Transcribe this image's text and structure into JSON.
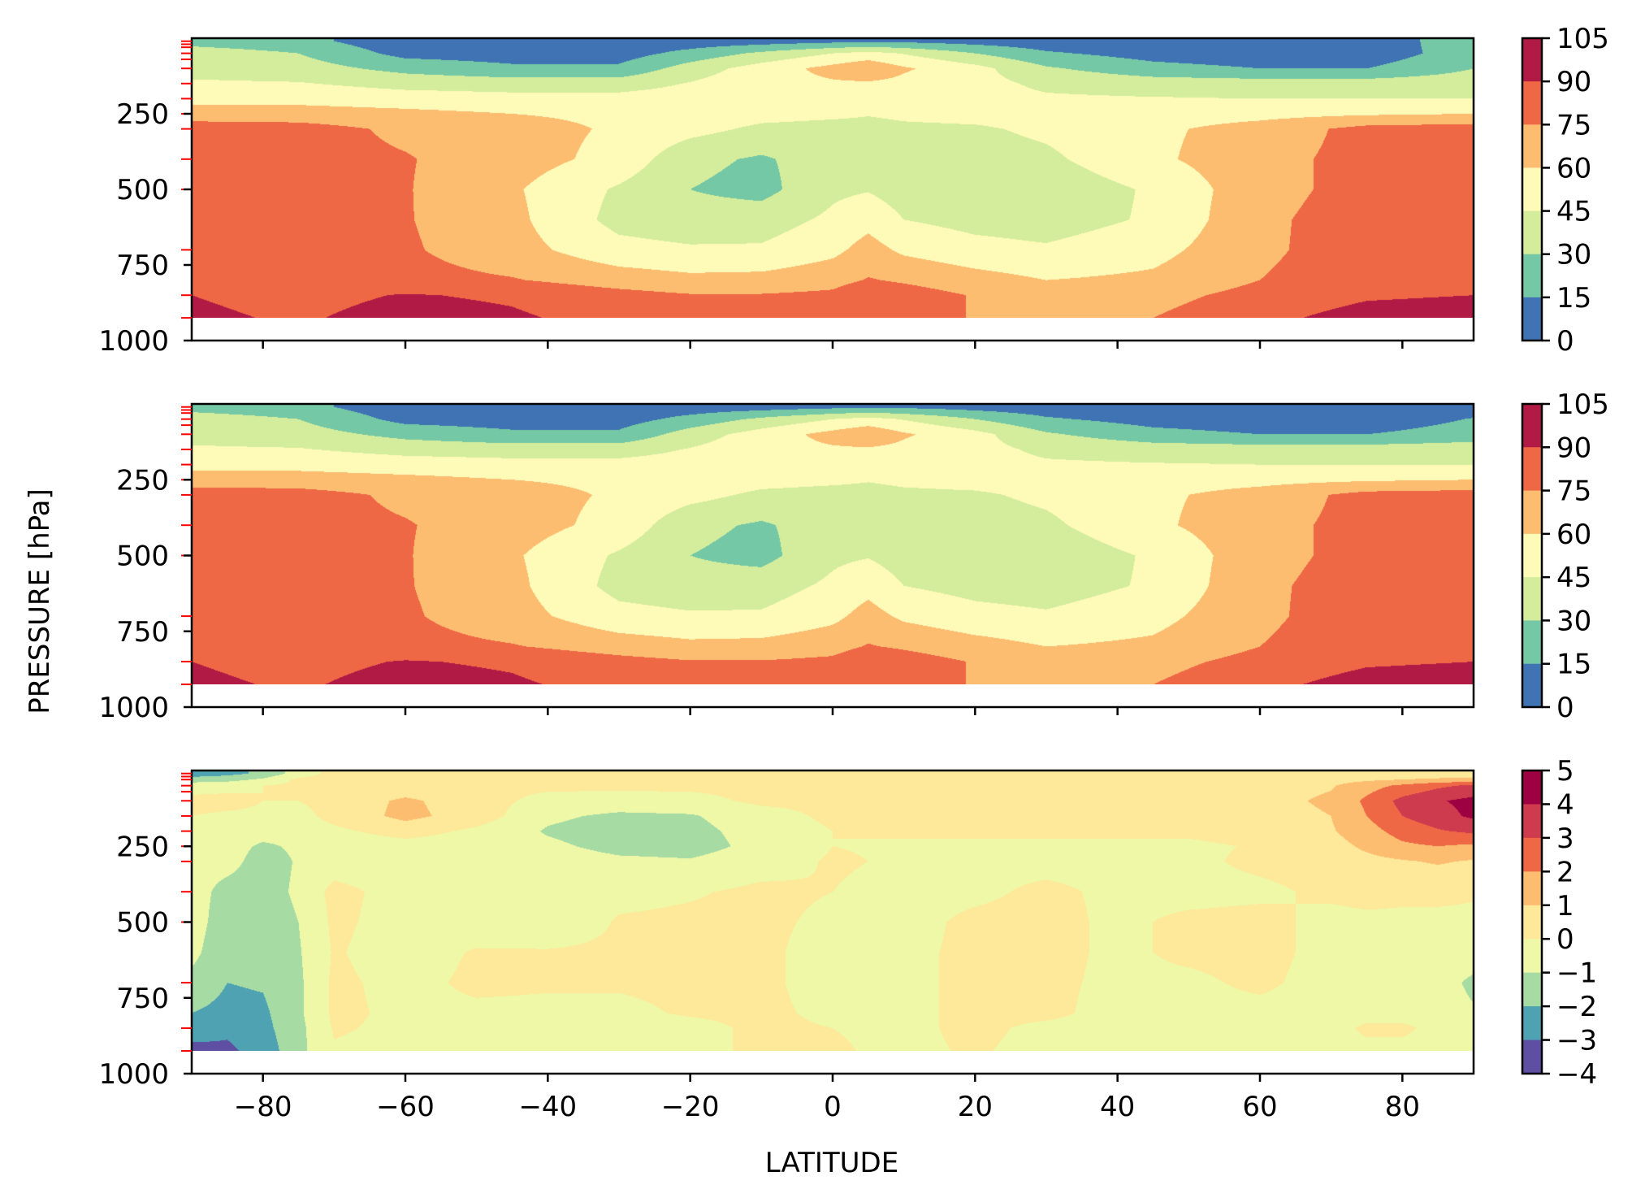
{
  "chart_data": [
    {
      "type": "contour",
      "panel": "top",
      "xlim": [
        -90,
        90
      ],
      "x_ticks": [
        -80,
        -60,
        -40,
        -20,
        0,
        20,
        40,
        60,
        80
      ],
      "y_ticks": [
        250,
        500,
        750,
        1000
      ],
      "y_inverted": true,
      "pressure_levels": [
        10,
        20,
        30,
        50,
        70,
        100,
        150,
        200,
        250,
        300,
        400,
        500,
        700,
        850,
        925
      ],
      "bottom_level": 925,
      "levels": [
        0,
        15,
        30,
        45,
        60,
        75,
        90,
        105
      ],
      "colorbar_ticks": [
        "105",
        "90",
        "75",
        "60",
        "45",
        "30",
        "15",
        "0"
      ],
      "colors": [
        "#3f73b4",
        "#75c8a5",
        "#d3ed9c",
        "#fefab7",
        "#fcbd71",
        "#ef6845",
        "#b21a46"
      ],
      "tick_color": "#ff0000",
      "field": {
        "lat": [
          -90,
          -75,
          -60,
          -45,
          -30,
          -20,
          -10,
          0,
          5,
          10,
          20,
          30,
          45,
          60,
          75,
          90
        ],
        "p": [
          10,
          50,
          100,
          150,
          200,
          250,
          300,
          400,
          500,
          600,
          700,
          800,
          850,
          925
        ],
        "values": [
          [
            24,
            20,
            5,
            5,
            5,
            6,
            8,
            11,
            13,
            12,
            9,
            6,
            5,
            4,
            4,
            26
          ],
          [
            38,
            30,
            10,
            8,
            8,
            20,
            33,
            45,
            50,
            44,
            30,
            17,
            9,
            6,
            5,
            24
          ],
          [
            40,
            37,
            25,
            18,
            18,
            37,
            52,
            65,
            72,
            62,
            50,
            32,
            20,
            15,
            15,
            30
          ],
          [
            47,
            46,
            40,
            38,
            38,
            46,
            55,
            58,
            58,
            56,
            50,
            42,
            38,
            37,
            37,
            38
          ],
          [
            55,
            55,
            52,
            50,
            50,
            52,
            55,
            55,
            52,
            52,
            50,
            47,
            46,
            45,
            45,
            45
          ],
          [
            68,
            67,
            64,
            60,
            57,
            55,
            50,
            48,
            46,
            48,
            50,
            52,
            53,
            55,
            58,
            60
          ],
          [
            82,
            81,
            72,
            66,
            58,
            50,
            42,
            40,
            40,
            42,
            43,
            48,
            57,
            66,
            80,
            82
          ],
          [
            82,
            80,
            76,
            67,
            55,
            34,
            28,
            38,
            30,
            38,
            38,
            42,
            57,
            70,
            80,
            82
          ],
          [
            82,
            81,
            76,
            62,
            43,
            30,
            25,
            42,
            44,
            38,
            33,
            35,
            47,
            70,
            80,
            82
          ],
          [
            82,
            81,
            76,
            64,
            40,
            36,
            38,
            48,
            55,
            45,
            40,
            38,
            47,
            72,
            82,
            83
          ],
          [
            84,
            82,
            77,
            66,
            50,
            47,
            47,
            56,
            66,
            57,
            50,
            47,
            55,
            72,
            83,
            84
          ],
          [
            84,
            82,
            80,
            76,
            68,
            64,
            65,
            70,
            76,
            73,
            66,
            60,
            63,
            75,
            84,
            85
          ],
          [
            90,
            85,
            91,
            88,
            80,
            76,
            76,
            78,
            86,
            82,
            74,
            70,
            70,
            80,
            88,
            90
          ],
          [
            93,
            88,
            96,
            92,
            85,
            80,
            80,
            82,
            86,
            82,
            74,
            72,
            75,
            86,
            96,
            98
          ]
        ]
      }
    },
    {
      "type": "contour",
      "panel": "middle",
      "xlim": [
        -90,
        90
      ],
      "x_ticks": [
        -80,
        -60,
        -40,
        -20,
        0,
        20,
        40,
        60,
        80
      ],
      "y_ticks": [
        250,
        500,
        750,
        1000
      ],
      "y_inverted": true,
      "pressure_levels": [
        10,
        20,
        30,
        50,
        70,
        100,
        150,
        200,
        250,
        300,
        400,
        500,
        700,
        850,
        925
      ],
      "bottom_level": 925,
      "levels": [
        0,
        15,
        30,
        45,
        60,
        75,
        90,
        105
      ],
      "colorbar_ticks": [
        "105",
        "90",
        "75",
        "60",
        "45",
        "30",
        "15",
        "0"
      ],
      "colors": [
        "#3f73b4",
        "#75c8a5",
        "#d3ed9c",
        "#fefab7",
        "#fcbd71",
        "#ef6845",
        "#b21a46"
      ],
      "tick_color": "#ff0000",
      "field": {
        "lat": [
          -90,
          -75,
          -60,
          -45,
          -30,
          -20,
          -10,
          0,
          5,
          10,
          20,
          30,
          45,
          60,
          75,
          90
        ],
        "p": [
          10,
          50,
          100,
          150,
          200,
          250,
          300,
          400,
          500,
          600,
          700,
          800,
          850,
          925
        ],
        "values": [
          [
            24,
            20,
            5,
            5,
            5,
            6,
            8,
            11,
            13,
            12,
            9,
            6,
            5,
            4,
            4,
            6
          ],
          [
            38,
            30,
            10,
            8,
            8,
            20,
            33,
            45,
            50,
            44,
            30,
            17,
            9,
            6,
            5,
            16
          ],
          [
            40,
            37,
            25,
            18,
            18,
            37,
            52,
            65,
            72,
            62,
            50,
            32,
            20,
            15,
            15,
            22
          ],
          [
            47,
            46,
            40,
            38,
            38,
            46,
            55,
            58,
            58,
            56,
            50,
            42,
            38,
            37,
            37,
            38
          ],
          [
            55,
            55,
            52,
            50,
            50,
            52,
            55,
            55,
            52,
            52,
            50,
            47,
            46,
            45,
            45,
            45
          ],
          [
            68,
            67,
            64,
            60,
            57,
            55,
            50,
            48,
            46,
            48,
            50,
            52,
            53,
            55,
            58,
            60
          ],
          [
            82,
            81,
            72,
            66,
            58,
            50,
            42,
            40,
            40,
            42,
            43,
            48,
            57,
            66,
            80,
            82
          ],
          [
            82,
            80,
            76,
            67,
            55,
            34,
            28,
            38,
            30,
            38,
            38,
            42,
            57,
            70,
            80,
            82
          ],
          [
            82,
            81,
            76,
            62,
            43,
            30,
            25,
            42,
            44,
            38,
            33,
            35,
            47,
            70,
            80,
            82
          ],
          [
            82,
            81,
            76,
            64,
            40,
            36,
            38,
            48,
            55,
            45,
            40,
            38,
            47,
            72,
            82,
            83
          ],
          [
            84,
            82,
            77,
            66,
            50,
            47,
            47,
            56,
            66,
            57,
            50,
            47,
            55,
            72,
            83,
            84
          ],
          [
            84,
            82,
            80,
            76,
            68,
            64,
            65,
            70,
            76,
            73,
            66,
            60,
            63,
            75,
            84,
            85
          ],
          [
            90,
            85,
            91,
            88,
            80,
            76,
            76,
            78,
            86,
            82,
            74,
            70,
            70,
            80,
            88,
            90
          ],
          [
            93,
            88,
            96,
            92,
            85,
            80,
            80,
            82,
            86,
            82,
            74,
            72,
            75,
            86,
            96,
            98
          ]
        ]
      }
    },
    {
      "type": "contour",
      "panel": "bottom",
      "xlim": [
        -90,
        90
      ],
      "x_ticks": [
        -80,
        -60,
        -40,
        -20,
        0,
        20,
        40,
        60,
        80
      ],
      "y_ticks": [
        250,
        500,
        750,
        1000
      ],
      "y_inverted": true,
      "pressure_levels": [
        10,
        20,
        30,
        50,
        70,
        100,
        150,
        200,
        250,
        300,
        400,
        500,
        700,
        850,
        925
      ],
      "bottom_level": 925,
      "levels": [
        -4,
        -3,
        -2,
        -1,
        0,
        1,
        2,
        3,
        4,
        5
      ],
      "colorbar_ticks": [
        "5",
        "4",
        "3",
        "2",
        "1",
        "0",
        "−1",
        "−2",
        "−3",
        "−4"
      ],
      "colors": [
        "#5e4fa2",
        "#4fa2b2",
        "#a6dba4",
        "#eef8a7",
        "#fee89a",
        "#fcbd71",
        "#ef6845",
        "#cf3b4e",
        "#9e0142"
      ],
      "tick_color": "#ff0000",
      "field": {
        "lat": [
          -90,
          -85,
          -80,
          -75,
          -70,
          -60,
          -50,
          -40,
          -30,
          -20,
          -10,
          0,
          10,
          20,
          30,
          40,
          50,
          60,
          70,
          75,
          80,
          85,
          90
        ],
        "p": [
          10,
          30,
          50,
          100,
          150,
          200,
          250,
          300,
          400,
          500,
          600,
          700,
          800,
          850,
          925
        ],
        "values": [
          [
            -2.5,
            -2.3,
            -1.8,
            -0.5,
            0.3,
            0.4,
            0.3,
            0.2,
            0.1,
            0.1,
            0.2,
            0.2,
            0.2,
            0.2,
            0.2,
            0.2,
            0.2,
            0.3,
            0.3,
            0.3,
            0.3,
            0.3,
            0.3
          ],
          [
            -1.6,
            -1.4,
            -0.8,
            0.2,
            0.3,
            0.3,
            0.2,
            0.2,
            0.1,
            0.2,
            0.2,
            0.2,
            0.2,
            0.2,
            0.2,
            0.2,
            0.2,
            0.4,
            0.6,
            0.8,
            1.0,
            1.2,
            1.3
          ],
          [
            -0.3,
            -0.2,
            0.0,
            0.2,
            0.3,
            0.3,
            0.2,
            0.2,
            0.2,
            0.2,
            0.2,
            0.2,
            0.2,
            0.2,
            0.2,
            0.2,
            0.3,
            0.5,
            0.9,
            1.6,
            2.2,
            2.8,
            3.2
          ],
          [
            0.2,
            0.2,
            0.0,
            0.0,
            0.3,
            1.2,
            0.4,
            -0.3,
            -0.4,
            -0.3,
            0.2,
            0.2,
            0.2,
            0.2,
            0.3,
            0.3,
            0.4,
            0.6,
            1.2,
            2.2,
            3.3,
            3.9,
            4.3
          ],
          [
            0.0,
            -0.1,
            -0.1,
            -0.3,
            0.3,
            1.3,
            0.5,
            -0.8,
            -1.2,
            -1.1,
            -0.4,
            0.2,
            0.2,
            0.2,
            0.3,
            0.3,
            0.3,
            0.5,
            1.0,
            2.0,
            3.0,
            3.6,
            4.2
          ],
          [
            -0.3,
            -0.2,
            -0.5,
            -0.6,
            -0.2,
            0.4,
            -0.2,
            -1.1,
            -1.5,
            -1.3,
            -0.6,
            0.0,
            0.1,
            0.2,
            0.2,
            0.2,
            0.2,
            0.4,
            0.9,
            1.6,
            2.4,
            2.9,
            3.2
          ],
          [
            -0.6,
            -0.5,
            -1.2,
            -0.8,
            -0.6,
            -0.4,
            -0.5,
            -0.8,
            -1.3,
            -1.4,
            -0.7,
            0.0,
            -0.1,
            -0.2,
            -0.2,
            -0.2,
            -0.2,
            0.1,
            0.6,
            1.2,
            1.8,
            2.0,
            1.8
          ],
          [
            -0.6,
            -0.6,
            -1.5,
            -0.9,
            -0.5,
            -0.6,
            -0.5,
            -0.5,
            -0.8,
            -0.9,
            -0.4,
            0.1,
            -0.1,
            -0.2,
            -0.3,
            -0.3,
            -0.2,
            0.2,
            0.4,
            0.7,
            0.9,
            1.1,
            0.9
          ],
          [
            -0.5,
            -1.4,
            -1.5,
            -0.8,
            0.3,
            -0.4,
            -0.6,
            -0.8,
            -0.3,
            -0.1,
            0.2,
            0.0,
            -0.3,
            -0.2,
            0.2,
            -0.2,
            -0.3,
            -0.2,
            0.2,
            0.3,
            0.2,
            0.2,
            0.1
          ],
          [
            -0.5,
            -1.6,
            -1.7,
            -1.0,
            0.2,
            -0.4,
            -0.6,
            -0.8,
            0.1,
            0.2,
            0.2,
            -0.2,
            -0.3,
            0.2,
            0.3,
            -0.2,
            0.2,
            0.3,
            -0.3,
            -0.2,
            -0.2,
            -0.2,
            -0.2
          ],
          [
            -0.7,
            -1.8,
            -1.8,
            -1.1,
            0.1,
            -0.5,
            0.1,
            0.1,
            0.2,
            0.2,
            0.2,
            -0.4,
            -0.2,
            0.2,
            0.3,
            -0.2,
            0.2,
            0.3,
            -0.3,
            -0.4,
            -0.4,
            -0.4,
            -0.5
          ],
          [
            -1.3,
            -2.0,
            -1.9,
            -1.2,
            0.2,
            -0.3,
            0.2,
            0.1,
            0.1,
            0.2,
            0.2,
            -0.4,
            -0.2,
            0.2,
            0.2,
            -0.2,
            -0.2,
            0.2,
            -0.4,
            -0.4,
            -0.4,
            -0.6,
            -1.2
          ],
          [
            -2.0,
            -2.3,
            -2.2,
            -1.2,
            0.2,
            -0.2,
            -0.2,
            -0.2,
            -0.2,
            0.1,
            0.2,
            -0.2,
            -0.2,
            0.2,
            0.2,
            -0.3,
            -0.3,
            -0.3,
            -0.4,
            -0.4,
            -0.4,
            -0.6,
            -0.9
          ],
          [
            -2.2,
            -2.8,
            -2.3,
            -1.3,
            0.1,
            -0.2,
            -0.3,
            -0.3,
            -0.3,
            -0.3,
            0.2,
            0.0,
            -0.2,
            0.2,
            -0.2,
            -0.3,
            -0.3,
            -0.4,
            -0.4,
            0.2,
            0.2,
            -0.3,
            -0.5
          ],
          [
            -3.5,
            -3.2,
            -2.6,
            -1.3,
            -0.1,
            -0.3,
            -0.4,
            -0.4,
            -0.3,
            -0.3,
            0.2,
            0.1,
            -0.2,
            0.1,
            -0.3,
            -0.3,
            -0.4,
            -0.4,
            -0.4,
            -0.3,
            -0.3,
            -0.4,
            -0.4
          ]
        ]
      }
    }
  ],
  "axes": {
    "ylabel": "PRESSURE [hPa]",
    "xlabel": "LATITUDE"
  }
}
